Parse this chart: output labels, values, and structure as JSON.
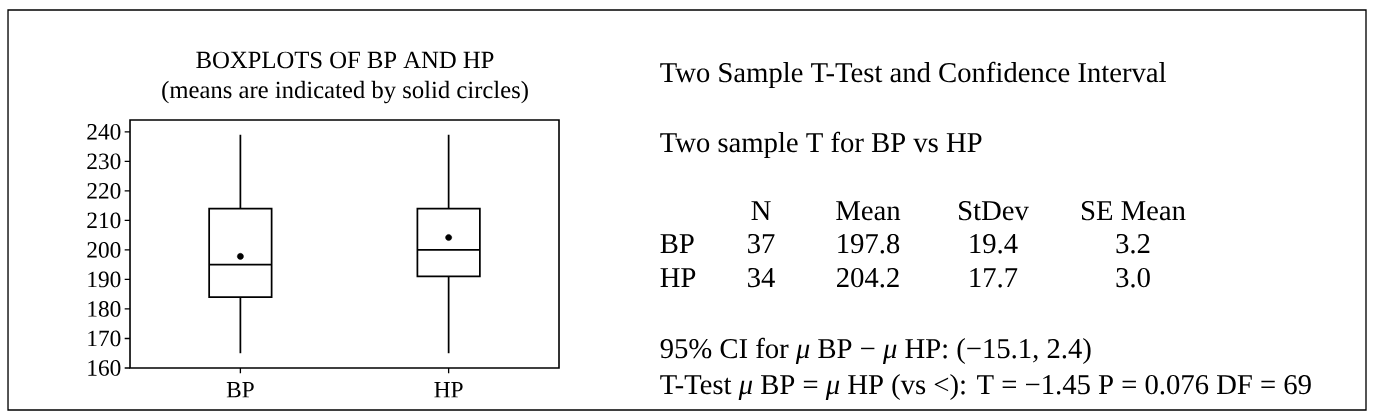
{
  "chart_data": [
    {
      "type": "box",
      "title": "BOXPLOTS OF BP AND HP",
      "subtitle": "(means are indicated by solid circles)",
      "categories": [
        "BP",
        "HP"
      ],
      "boxes": [
        {
          "low": 165,
          "q1": 184,
          "median": 195,
          "q3": 214,
          "high": 239,
          "mean": 197.8
        },
        {
          "low": 165,
          "q1": 191,
          "median": 200,
          "q3": 214,
          "high": 239,
          "mean": 204.2
        }
      ],
      "ylim": [
        160,
        244
      ],
      "yticks": [
        160,
        170,
        180,
        190,
        200,
        210,
        220,
        230,
        240
      ]
    },
    {
      "type": "other",
      "title": "Two Sample T-Test and Confidence Interval",
      "annotations": [
        "Two sample T for BP vs HP",
        "N",
        "Mean",
        "StDev",
        "SE Mean",
        "BP",
        "37",
        "197.8",
        "19.4",
        "3.2",
        "HP",
        "34",
        "204.2",
        "17.7",
        "3.0",
        "95% CI for *μ* BP − *μ* HP:  (−15.1, 2.4)",
        "T-Test *μ* BP = *μ* HP (vs <):  T = −1.45  P = 0.076  DF = 69"
      ]
    }
  ]
}
